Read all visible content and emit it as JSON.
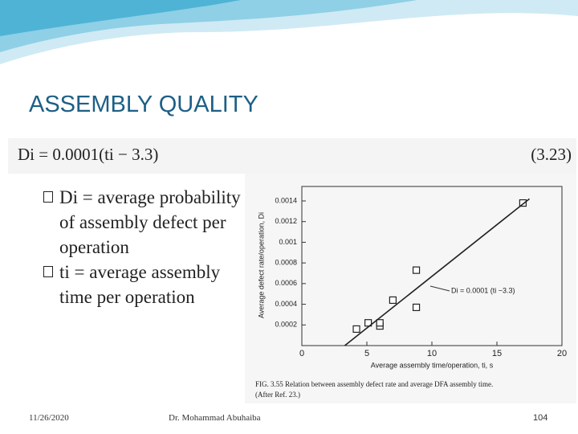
{
  "header": {
    "title": "ASSEMBLY QUALITY"
  },
  "equation": {
    "text": "Di = 0.0001(ti − 3.3)",
    "number": "(3.23)"
  },
  "bullets": [
    "Di = average probability of assembly defect per operation",
    "ti = average assembly time per operation"
  ],
  "footer": {
    "date": "11/26/2020",
    "author": "Dr. Mohammad Abuhaiba",
    "page": "104"
  },
  "chart_data": {
    "type": "scatter",
    "x_label": "Average assembly time/operation, ti, s",
    "y_label": "Average defect rate/operation, Di",
    "annotation": "Di = 0.0001 (ti −3.3)",
    "caption": "FIG. 3.55  Relation between assembly defect rate and average DFA assembly time.",
    "caption_note": "(After Ref. 23.)",
    "xlim": [
      0,
      20
    ],
    "ylim": [
      0,
      0.00154
    ],
    "xticks": [
      0,
      5,
      10,
      15,
      20
    ],
    "yticks": [
      0.0002,
      0.0004,
      0.0006,
      0.0008,
      0.001,
      0.0012,
      0.0014
    ],
    "series": [
      {
        "style": "marker",
        "color": "#222222",
        "x": [
          4.2,
          5.1,
          6.0,
          6.0,
          7.0,
          8.8,
          8.8,
          17.0
        ],
        "values": [
          0.00016,
          0.00022,
          0.00019,
          0.00022,
          0.00044,
          0.00037,
          0.00073,
          0.00138
        ]
      },
      {
        "style": "line",
        "color": "#222222",
        "x": [
          3.3,
          17.5
        ],
        "values": [
          0,
          0.00142
        ]
      }
    ]
  }
}
